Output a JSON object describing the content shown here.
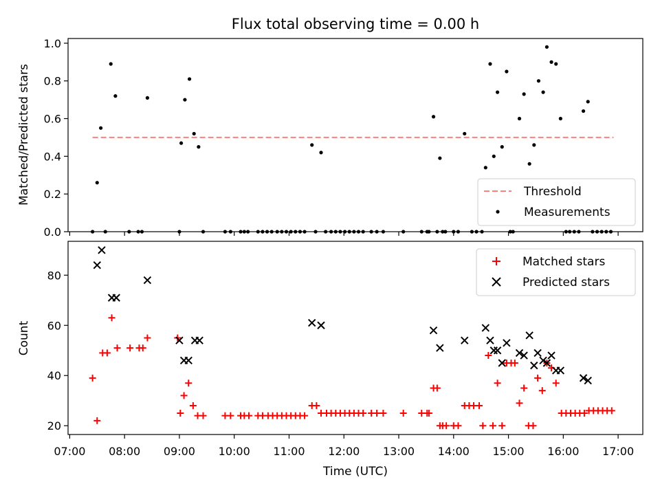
{
  "chart_data": {
    "title": "Flux total observing time = 0.00 h",
    "xlabel": "Time (UTC)",
    "x_unit": "hours UTC",
    "xlim": [
      "07:00",
      "17:00"
    ],
    "x_ticks": [
      "07:00",
      "08:00",
      "09:00",
      "10:00",
      "11:00",
      "12:00",
      "13:00",
      "14:00",
      "15:00",
      "16:00",
      "17:00"
    ],
    "panels": [
      {
        "type": "scatter",
        "ylabel": "Matched/Predicted stars",
        "ylim": [
          0,
          1.0
        ],
        "y_ticks": [
          "0.0",
          "0.2",
          "0.4",
          "0.6",
          "0.8",
          "1.0"
        ],
        "legend_position": "lower-right",
        "series": [
          {
            "name": "Threshold",
            "kind": "line",
            "style": "dashed",
            "color": "#ff7f7f",
            "x": [
              "07:25",
              "16:55"
            ],
            "y": [
              0.5,
              0.5
            ]
          },
          {
            "name": "Measurements",
            "kind": "dots",
            "color": "#000000",
            "points": [
              [
                "07:25",
                0.0
              ],
              [
                "07:30",
                0.26
              ],
              [
                "07:34",
                0.55
              ],
              [
                "07:39",
                0.0
              ],
              [
                "07:45",
                0.89
              ],
              [
                "07:50",
                0.72
              ],
              [
                "08:05",
                0.0
              ],
              [
                "08:15",
                0.0
              ],
              [
                "08:19",
                0.0
              ],
              [
                "08:25",
                0.71
              ],
              [
                "09:00",
                0.0
              ],
              [
                "09:02",
                0.47
              ],
              [
                "09:06",
                0.7
              ],
              [
                "09:11",
                0.81
              ],
              [
                "09:16",
                0.52
              ],
              [
                "09:21",
                0.45
              ],
              [
                "09:26",
                0.0
              ],
              [
                "09:50",
                0.0
              ],
              [
                "09:56",
                0.0
              ],
              [
                "10:07",
                0.0
              ],
              [
                "10:11",
                0.0
              ],
              [
                "10:15",
                0.0
              ],
              [
                "10:26",
                0.0
              ],
              [
                "10:31",
                0.0
              ],
              [
                "10:36",
                0.0
              ],
              [
                "10:41",
                0.0
              ],
              [
                "10:47",
                0.0
              ],
              [
                "10:52",
                0.0
              ],
              [
                "10:57",
                0.0
              ],
              [
                "11:02",
                0.0
              ],
              [
                "11:07",
                0.0
              ],
              [
                "11:12",
                0.0
              ],
              [
                "11:17",
                0.0
              ],
              [
                "11:25",
                0.46
              ],
              [
                "11:29",
                0.0
              ],
              [
                "11:35",
                0.42
              ],
              [
                "11:40",
                0.0
              ],
              [
                "11:46",
                0.0
              ],
              [
                "11:51",
                0.0
              ],
              [
                "11:56",
                0.0
              ],
              [
                "12:01",
                0.0
              ],
              [
                "12:06",
                0.0
              ],
              [
                "12:11",
                0.0
              ],
              [
                "12:16",
                0.0
              ],
              [
                "12:21",
                0.0
              ],
              [
                "12:30",
                0.0
              ],
              [
                "12:36",
                0.0
              ],
              [
                "12:43",
                0.0
              ],
              [
                "13:05",
                0.0
              ],
              [
                "13:25",
                0.0
              ],
              [
                "13:31",
                0.0
              ],
              [
                "13:33",
                0.0
              ],
              [
                "13:38",
                0.61
              ],
              [
                "13:42",
                0.0
              ],
              [
                "13:45",
                0.39
              ],
              [
                "13:48",
                0.0
              ],
              [
                "13:51",
                0.0
              ],
              [
                "14:00",
                0.0
              ],
              [
                "14:05",
                0.0
              ],
              [
                "14:12",
                0.52
              ],
              [
                "14:20",
                0.0
              ],
              [
                "14:25",
                0.0
              ],
              [
                "14:31",
                0.0
              ],
              [
                "14:35",
                0.34
              ],
              [
                "14:40",
                0.89
              ],
              [
                "14:44",
                0.4
              ],
              [
                "14:48",
                0.74
              ],
              [
                "14:53",
                0.45
              ],
              [
                "14:58",
                0.85
              ],
              [
                "15:02",
                0.0
              ],
              [
                "15:05",
                0.0
              ],
              [
                "15:12",
                0.6
              ],
              [
                "15:17",
                0.73
              ],
              [
                "15:23",
                0.36
              ],
              [
                "15:28",
                0.46
              ],
              [
                "15:33",
                0.8
              ],
              [
                "15:38",
                0.74
              ],
              [
                "15:42",
                0.98
              ],
              [
                "15:47",
                0.9
              ],
              [
                "15:52",
                0.89
              ],
              [
                "15:57",
                0.6
              ],
              [
                "16:03",
                0.0
              ],
              [
                "16:07",
                0.0
              ],
              [
                "16:12",
                0.0
              ],
              [
                "16:17",
                0.0
              ],
              [
                "16:22",
                0.64
              ],
              [
                "16:27",
                0.69
              ],
              [
                "16:32",
                0.0
              ],
              [
                "16:37",
                0.0
              ],
              [
                "16:42",
                0.0
              ],
              [
                "16:47",
                0.0
              ],
              [
                "16:52",
                0.0
              ]
            ]
          }
        ]
      },
      {
        "type": "scatter",
        "ylabel": "Count",
        "ylim": [
          16.5,
          93.5
        ],
        "y_ticks": [
          "20",
          "40",
          "60",
          "80"
        ],
        "legend_position": "upper-right",
        "series": [
          {
            "name": "Matched stars",
            "marker": "+",
            "color": "#ff0000",
            "points": [
              [
                "07:25",
                39
              ],
              [
                "07:30",
                22
              ],
              [
                "07:36",
                49
              ],
              [
                "07:41",
                49
              ],
              [
                "07:46",
                63
              ],
              [
                "07:52",
                51
              ],
              [
                "08:06",
                51
              ],
              [
                "08:16",
                51
              ],
              [
                "08:20",
                51
              ],
              [
                "08:25",
                55
              ],
              [
                "08:58",
                55
              ],
              [
                "09:01",
                25
              ],
              [
                "09:05",
                32
              ],
              [
                "09:10",
                37
              ],
              [
                "09:15",
                28
              ],
              [
                "09:20",
                24
              ],
              [
                "09:26",
                24
              ],
              [
                "09:50",
                24
              ],
              [
                "09:56",
                24
              ],
              [
                "10:07",
                24
              ],
              [
                "10:11",
                24
              ],
              [
                "10:16",
                24
              ],
              [
                "10:26",
                24
              ],
              [
                "10:31",
                24
              ],
              [
                "10:37",
                24
              ],
              [
                "10:42",
                24
              ],
              [
                "10:47",
                24
              ],
              [
                "10:52",
                24
              ],
              [
                "10:57",
                24
              ],
              [
                "11:02",
                24
              ],
              [
                "11:07",
                24
              ],
              [
                "11:12",
                24
              ],
              [
                "11:17",
                24
              ],
              [
                "11:25",
                28
              ],
              [
                "11:30",
                28
              ],
              [
                "11:35",
                25
              ],
              [
                "11:41",
                25
              ],
              [
                "11:46",
                25
              ],
              [
                "11:51",
                25
              ],
              [
                "11:56",
                25
              ],
              [
                "12:01",
                25
              ],
              [
                "12:06",
                25
              ],
              [
                "12:11",
                25
              ],
              [
                "12:16",
                25
              ],
              [
                "12:21",
                25
              ],
              [
                "12:30",
                25
              ],
              [
                "12:36",
                25
              ],
              [
                "12:43",
                25
              ],
              [
                "13:05",
                25
              ],
              [
                "13:25",
                25
              ],
              [
                "13:31",
                25
              ],
              [
                "13:33",
                25
              ],
              [
                "13:38",
                35
              ],
              [
                "13:42",
                35
              ],
              [
                "13:45",
                20
              ],
              [
                "13:48",
                20
              ],
              [
                "13:52",
                20
              ],
              [
                "14:00",
                20
              ],
              [
                "14:05",
                20
              ],
              [
                "14:12",
                28
              ],
              [
                "14:17",
                28
              ],
              [
                "14:22",
                28
              ],
              [
                "14:28",
                28
              ],
              [
                "14:32",
                20
              ],
              [
                "14:38",
                48
              ],
              [
                "14:43",
                20
              ],
              [
                "14:48",
                37
              ],
              [
                "14:53",
                20
              ],
              [
                "14:58",
                45
              ],
              [
                "15:03",
                45
              ],
              [
                "15:07",
                45
              ],
              [
                "15:12",
                29
              ],
              [
                "15:17",
                35
              ],
              [
                "15:22",
                20
              ],
              [
                "15:27",
                20
              ],
              [
                "15:32",
                39
              ],
              [
                "15:37",
                34
              ],
              [
                "15:42",
                45
              ],
              [
                "15:47",
                43
              ],
              [
                "15:52",
                37
              ],
              [
                "15:58",
                25
              ],
              [
                "16:03",
                25
              ],
              [
                "16:08",
                25
              ],
              [
                "16:13",
                25
              ],
              [
                "16:18",
                25
              ],
              [
                "16:23",
                25
              ],
              [
                "16:28",
                26
              ],
              [
                "16:33",
                26
              ],
              [
                "16:38",
                26
              ],
              [
                "16:43",
                26
              ],
              [
                "16:48",
                26
              ],
              [
                "16:53",
                26
              ]
            ]
          },
          {
            "name": "Predicted stars",
            "marker": "x",
            "color": "#000000",
            "points": [
              [
                "07:30",
                84
              ],
              [
                "07:35",
                90
              ],
              [
                "07:46",
                71
              ],
              [
                "07:51",
                71
              ],
              [
                "08:25",
                78
              ],
              [
                "09:00",
                54
              ],
              [
                "09:05",
                46
              ],
              [
                "09:10",
                46
              ],
              [
                "09:17",
                54
              ],
              [
                "09:22",
                54
              ],
              [
                "11:25",
                61
              ],
              [
                "11:35",
                60
              ],
              [
                "13:38",
                58
              ],
              [
                "13:45",
                51
              ],
              [
                "14:12",
                54
              ],
              [
                "14:35",
                59
              ],
              [
                "14:40",
                54
              ],
              [
                "14:44",
                50
              ],
              [
                "14:48",
                50
              ],
              [
                "14:53",
                45
              ],
              [
                "14:58",
                53
              ],
              [
                "15:12",
                49
              ],
              [
                "15:17",
                48
              ],
              [
                "15:23",
                56
              ],
              [
                "15:28",
                44
              ],
              [
                "15:32",
                49
              ],
              [
                "15:38",
                46
              ],
              [
                "15:42",
                45
              ],
              [
                "15:47",
                48
              ],
              [
                "15:52",
                42
              ],
              [
                "15:57",
                42
              ],
              [
                "16:22",
                39
              ],
              [
                "16:27",
                38
              ]
            ]
          }
        ]
      }
    ]
  }
}
